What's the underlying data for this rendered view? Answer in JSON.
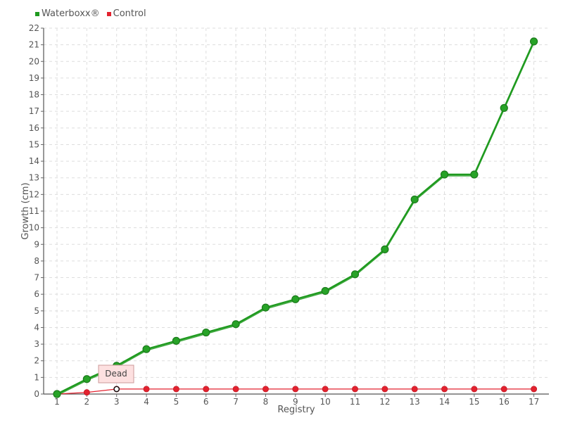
{
  "chart_data": {
    "type": "line",
    "xlabel": "Registry",
    "ylabel": "Growth (cm)",
    "x": [
      1,
      2,
      3,
      4,
      5,
      6,
      7,
      8,
      9,
      10,
      11,
      12,
      13,
      14,
      15,
      16,
      17
    ],
    "ylim": [
      0,
      22
    ],
    "yticks": [
      0,
      1,
      2,
      3,
      4,
      5,
      6,
      7,
      8,
      9,
      10,
      11,
      12,
      13,
      14,
      15,
      16,
      17,
      18,
      19,
      20,
      21,
      22
    ],
    "grid": true,
    "legend_position": "top-left",
    "series": [
      {
        "name": "Waterboxx®",
        "color": "#1f9a1f",
        "values": [
          0,
          0.9,
          1.7,
          2.7,
          3.2,
          3.7,
          4.2,
          5.2,
          5.7,
          6.2,
          7.2,
          8.7,
          11.7,
          13.2,
          13.2,
          17.2,
          21.2
        ]
      },
      {
        "name": "Control",
        "color": "#e3222f",
        "values": [
          0,
          0.1,
          0.3,
          0.3,
          0.3,
          0.3,
          0.3,
          0.3,
          0.3,
          0.3,
          0.3,
          0.3,
          0.3,
          0.3,
          0.3,
          0.3,
          0.3
        ]
      }
    ],
    "annotation": {
      "text": "Dead",
      "series": "Control",
      "x": 3,
      "y": 0.3
    }
  }
}
